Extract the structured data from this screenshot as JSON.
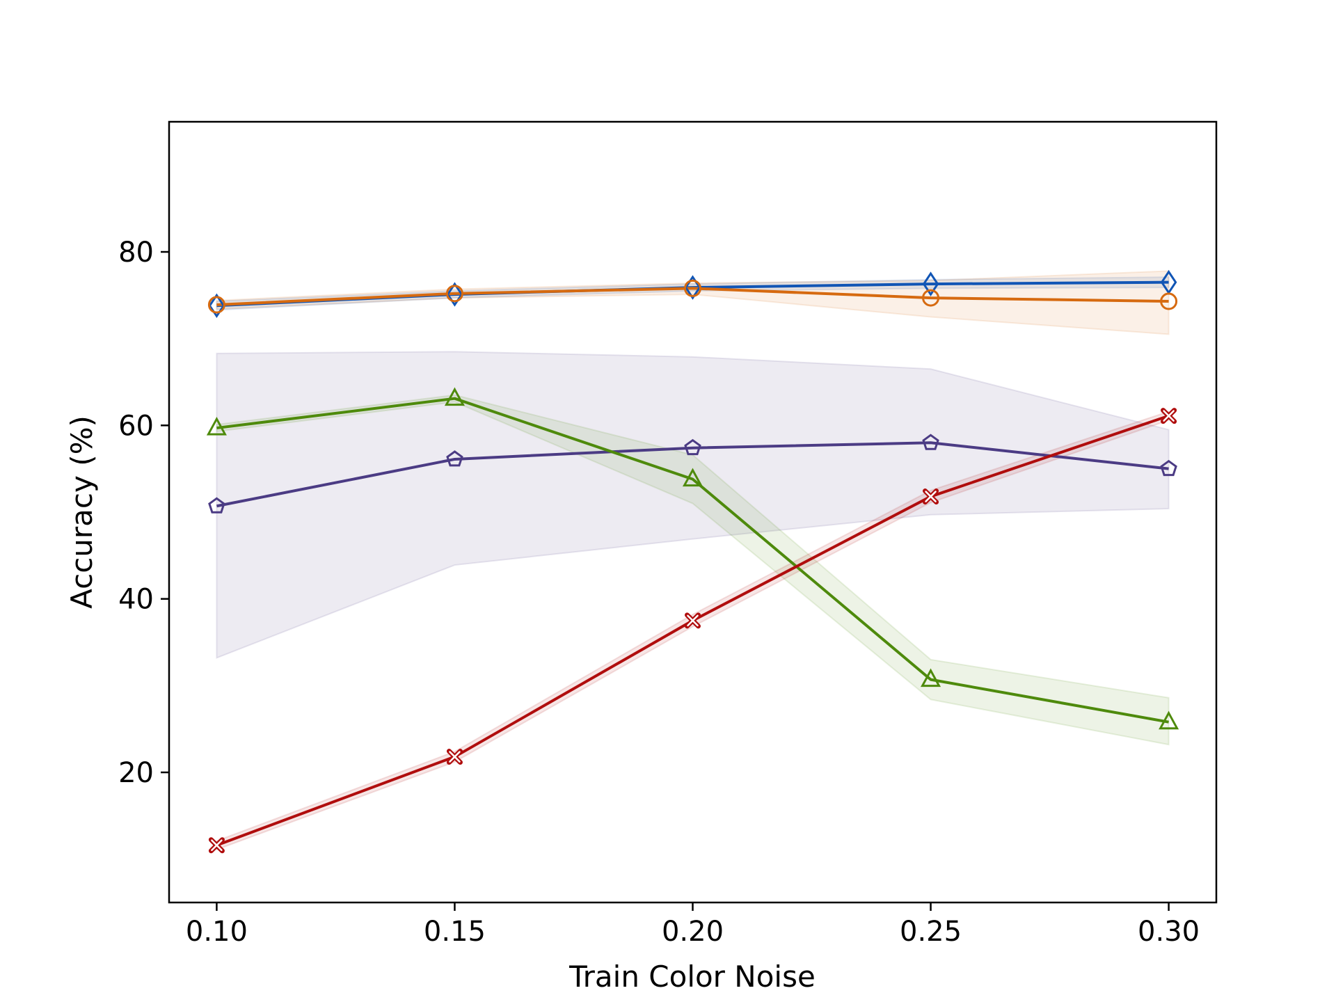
{
  "chart_data": {
    "type": "line",
    "title": "",
    "xlabel": "Train Color Noise",
    "ylabel": "Accuracy (%)",
    "x": [
      0.1,
      0.15,
      0.2,
      0.25,
      0.3
    ],
    "x_tick_labels": [
      "0.10",
      "0.15",
      "0.20",
      "0.25",
      "0.30"
    ],
    "xlim": [
      0.09,
      0.31
    ],
    "y_ticks": [
      20,
      40,
      60,
      80
    ],
    "y_tick_labels": [
      "20",
      "40",
      "60",
      "80"
    ],
    "ylim": [
      5,
      95
    ],
    "grid": false,
    "legend": "none",
    "series": [
      {
        "name": "blue-diamond",
        "color": "#1155b5",
        "marker": "diamond",
        "values": [
          73.8,
          75.1,
          75.9,
          76.3,
          76.5
        ],
        "lower": [
          73.3,
          74.7,
          75.5,
          75.8,
          75.9
        ],
        "upper": [
          74.3,
          75.5,
          76.3,
          76.8,
          77.1
        ]
      },
      {
        "name": "orange-circle",
        "color": "#d66a10",
        "marker": "circle",
        "values": [
          73.9,
          75.2,
          75.8,
          74.7,
          74.3
        ],
        "lower": [
          73.4,
          74.7,
          75.1,
          72.5,
          70.5
        ],
        "upper": [
          74.4,
          75.7,
          76.4,
          76.7,
          77.8
        ]
      },
      {
        "name": "purple-pentagon",
        "color": "#4b3b84",
        "marker": "pentagon",
        "values": [
          50.7,
          56.1,
          57.4,
          58.0,
          55.0
        ],
        "lower": [
          33.2,
          43.9,
          46.9,
          49.7,
          50.4
        ],
        "upper": [
          68.3,
          68.5,
          67.9,
          66.5,
          59.5
        ]
      },
      {
        "name": "green-triangle",
        "color": "#4e8a0c",
        "marker": "triangle",
        "values": [
          59.7,
          63.1,
          53.8,
          30.7,
          25.8
        ],
        "lower": [
          59.3,
          62.7,
          51.0,
          28.4,
          23.2
        ],
        "upper": [
          60.1,
          63.5,
          56.6,
          33.0,
          28.6
        ]
      },
      {
        "name": "red-x",
        "color": "#b00d0d",
        "marker": "x",
        "values": [
          11.6,
          21.8,
          37.5,
          51.8,
          61.1
        ],
        "lower": [
          11.1,
          21.2,
          36.8,
          51.1,
          60.6
        ],
        "upper": [
          12.1,
          22.4,
          38.2,
          52.5,
          61.6
        ]
      }
    ]
  }
}
